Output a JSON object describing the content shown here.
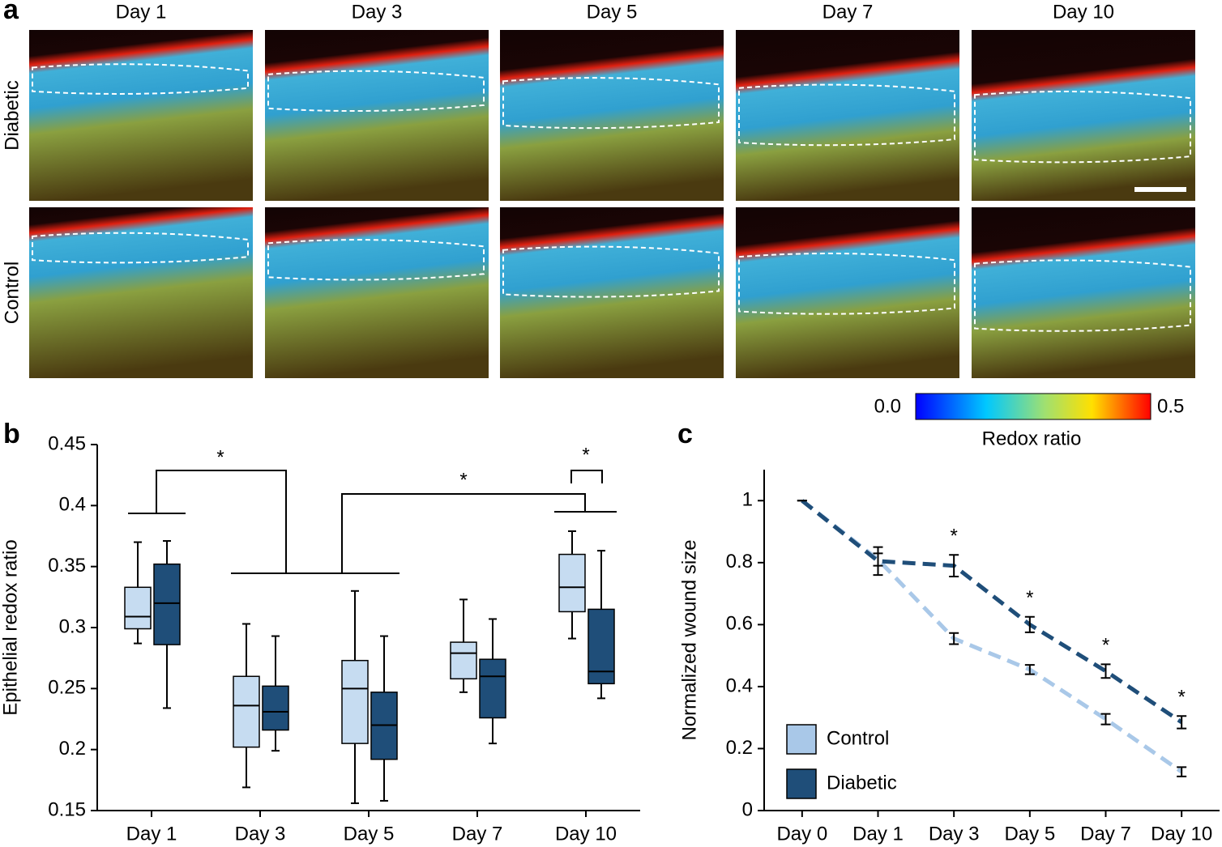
{
  "panels": [
    "a",
    "b",
    "c"
  ],
  "figure_a": {
    "columns": [
      "Day 1",
      "Day 3",
      "Day 5",
      "Day 7",
      "Day 10"
    ],
    "rows": [
      "Diabetic",
      "Control"
    ],
    "colorbar": {
      "clim": [
        0,
        0.5
      ],
      "ticks": [
        {
          "value": 0,
          "label": "0.0"
        },
        {
          "value": 0.5,
          "label": "0.5"
        }
      ],
      "label": "Redox ratio"
    }
  },
  "chart_data": [
    {
      "type": "box",
      "ylabel": "Epithelial redox ratio",
      "categories": [
        "Day 1",
        "Day 3",
        "Day 5",
        "Day 7",
        "Day 10"
      ],
      "series": [
        {
          "color": "#c6dcf1",
          "low": [
            0.287,
            0.169,
            0.156,
            0.247,
            0.291
          ],
          "q1": [
            0.299,
            0.202,
            0.205,
            0.258,
            0.313
          ],
          "median": [
            0.309,
            0.236,
            0.25,
            0.279,
            0.333
          ],
          "q3": [
            0.333,
            0.26,
            0.273,
            0.288,
            0.36
          ],
          "high": [
            0.37,
            0.303,
            0.33,
            0.323,
            0.379
          ]
        },
        {
          "color": "#1f4e79",
          "low": [
            0.234,
            0.199,
            0.158,
            0.205,
            0.242
          ],
          "q1": [
            0.286,
            0.216,
            0.192,
            0.226,
            0.254
          ],
          "median": [
            0.32,
            0.231,
            0.22,
            0.26,
            0.264
          ],
          "q3": [
            0.352,
            0.252,
            0.247,
            0.274,
            0.315
          ],
          "high": [
            0.371,
            0.293,
            0.293,
            0.307,
            0.363
          ]
        }
      ],
      "annotations": [
        "*",
        "*",
        "*"
      ],
      "ylim": [
        0.15,
        0.45
      ],
      "yticks": [
        0.15,
        0.2,
        0.25,
        0.3,
        0.35,
        0.4,
        0.45
      ]
    },
    {
      "type": "line",
      "ylabel": "Normalized wound size",
      "categories": [
        "Day 0",
        "Day 1",
        "Day 3",
        "Day 5",
        "Day 7",
        "Day 10"
      ],
      "series": [
        {
          "name": "Control",
          "color": "#a9c8e8",
          "values": [
            1,
            0.81,
            0.555,
            0.455,
            0.295,
            0.125
          ],
          "errors": [
            0,
            0.02,
            0.018,
            0.015,
            0.017,
            0.015
          ]
        },
        {
          "name": "Diabetic",
          "color": "#1f4e79",
          "values": [
            1,
            0.805,
            0.79,
            0.6,
            0.45,
            0.285
          ],
          "errors": [
            0,
            0.045,
            0.035,
            0.025,
            0.022,
            0.02
          ]
        }
      ],
      "annotations": [
        {
          "x": "Day 3",
          "text": "*"
        },
        {
          "x": "Day 5",
          "text": "*"
        },
        {
          "x": "Day 7",
          "text": "*"
        },
        {
          "x": "Day 10",
          "text": "*"
        }
      ],
      "legend": "lower left",
      "ylim": [
        0,
        1.1
      ],
      "yticks": [
        0,
        0.2,
        0.4,
        0.6,
        0.8,
        1
      ]
    }
  ]
}
